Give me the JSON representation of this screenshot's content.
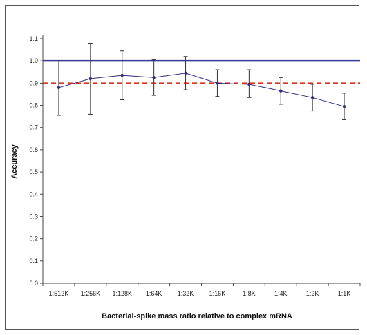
{
  "chart_data": {
    "type": "line",
    "title": "",
    "xlabel": "Bacterial-spike mass ratio relative to complex mRNA",
    "ylabel": "Accuracy",
    "categories": [
      "1:512K",
      "1:256K",
      "1:128K",
      "1:64K",
      "1:32K",
      "1:16K",
      "1:8K",
      "1:4K",
      "1:2K",
      "1:1K"
    ],
    "series": [
      {
        "values": [
          0.88,
          0.92,
          0.935,
          0.925,
          0.945,
          0.9,
          0.895,
          0.865,
          0.835,
          0.795
        ],
        "error_upper": [
          1.0,
          1.08,
          1.045,
          1.005,
          1.02,
          0.96,
          0.96,
          0.925,
          0.895,
          0.855
        ],
        "error_lower": [
          0.755,
          0.76,
          0.825,
          0.845,
          0.87,
          0.84,
          0.835,
          0.805,
          0.775,
          0.735
        ],
        "color": "#2e2e7a"
      }
    ],
    "reference_lines": [
      {
        "value": 1.0,
        "style": "solid",
        "color": "#3a3a9a"
      },
      {
        "value": 0.9,
        "style": "dashed",
        "color": "#e0301e"
      }
    ],
    "yticks": [
      "0.0",
      "0.1",
      "0.2",
      "0.3",
      "0.4",
      "0.5",
      "0.6",
      "0.7",
      "0.8",
      "0.9",
      "1.0",
      "1.1"
    ],
    "ylim": [
      0,
      1.1
    ],
    "grid": false,
    "legend": "none"
  }
}
